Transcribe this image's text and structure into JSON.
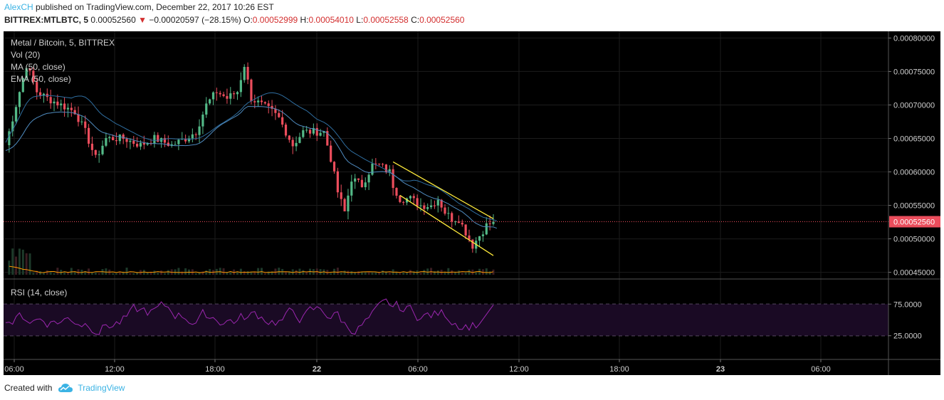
{
  "header": {
    "author": "AlexCH",
    "published_text": "published on TradingView.com, December 22, 2017 10:26 EST",
    "symbol": "BITTREX:MTLBTC, 5",
    "last": "0.00052560",
    "change_arrow": "▼",
    "change": "−0.00020597 (−28.15%)",
    "o_label": "O:",
    "o_value": "0.00052999",
    "h_label": "H:",
    "h_value": "0.00054010",
    "l_label": "L:",
    "l_value": "0.00052558",
    "c_label": "C:",
    "c_value": "0.00052560"
  },
  "legend": {
    "title": "Metal / Bitcoin, 5, BITTREX",
    "vol": "Vol (20)",
    "ma": "MA (50, close)",
    "ema": "EMA (50, close)",
    "rsi": "RSI (14, close)"
  },
  "footer": {
    "created_with": "Created with",
    "brand": "TradingView",
    "logo_icon": "tradingview-cloud-icon"
  },
  "colors": {
    "background": "#000000",
    "up": "#53b987",
    "down": "#eb4d5c",
    "ma": "#2f6ea0",
    "ema": "#4f8bbf",
    "vol_ma": "#ff9800",
    "rsi": "#9c27b0",
    "rsi_band": "#1a0a24",
    "trendline": "#ffeb3b",
    "last_price": "#eb4d5c",
    "grid": "#1c1c1c"
  },
  "chart_data": {
    "type": "candlestick",
    "timeframe_minutes": 5,
    "price_axis": {
      "ticks": [
        "0.00080000",
        "0.00075000",
        "0.00070000",
        "0.00065000",
        "0.00060000",
        "0.00055000",
        "0.00050000",
        "0.00045000"
      ],
      "range": [
        0.00044,
        0.00081
      ]
    },
    "last_price_label": "0.00052560",
    "time_axis": {
      "ticks": [
        "06:00",
        "12:00",
        "18:00",
        "22",
        "06:00",
        "12:00",
        "18:00",
        "23",
        "06:00"
      ]
    },
    "rsi_axis": {
      "ticks": [
        "75.0000",
        "25.0000"
      ],
      "overbought": 70,
      "oversold": 30
    },
    "price_path": [
      [
        0,
        0.00064
      ],
      [
        3,
        0.0007
      ],
      [
        6,
        0.00076
      ],
      [
        9,
        0.00072
      ],
      [
        12,
        0.00071
      ],
      [
        16,
        0.0007
      ],
      [
        20,
        0.00069
      ],
      [
        23,
        0.00066
      ],
      [
        26,
        0.00062
      ],
      [
        29,
        0.00065
      ],
      [
        34,
        0.00065
      ],
      [
        39,
        0.00064
      ],
      [
        43,
        0.00065
      ],
      [
        48,
        0.00064
      ],
      [
        52,
        0.00065
      ],
      [
        55,
        0.00066
      ],
      [
        58,
        0.0007
      ],
      [
        61,
        0.00072
      ],
      [
        64,
        0.00071
      ],
      [
        67,
        0.00072
      ],
      [
        69,
        0.00076
      ],
      [
        71,
        0.00071
      ],
      [
        74,
        0.0007
      ],
      [
        77,
        0.00069
      ],
      [
        79,
        0.00068
      ],
      [
        81,
        0.00066
      ],
      [
        83,
        0.00064
      ],
      [
        86,
        0.00066
      ],
      [
        89,
        0.00066
      ],
      [
        92,
        0.00066
      ],
      [
        94,
        0.00062
      ],
      [
        96,
        0.00057
      ],
      [
        98,
        0.00054
      ],
      [
        100,
        0.00059
      ],
      [
        103,
        0.00058
      ],
      [
        106,
        0.00061
      ],
      [
        108,
        0.00061
      ],
      [
        111,
        0.0006
      ],
      [
        112,
        0.00058
      ],
      [
        114,
        0.00056
      ],
      [
        117,
        0.00056
      ],
      [
        120,
        0.00055
      ],
      [
        123,
        0.00055
      ],
      [
        125,
        0.00056
      ],
      [
        127,
        0.00054
      ],
      [
        129,
        0.00053
      ],
      [
        131,
        0.00053
      ],
      [
        133,
        0.00051
      ],
      [
        135,
        0.00049
      ],
      [
        137,
        0.000505
      ],
      [
        139,
        0.00052
      ],
      [
        141,
        0.0005256
      ]
    ],
    "trend_channel": {
      "upper": [
        [
          112,
          0.000615
        ],
        [
          141,
          0.00053
        ]
      ],
      "lower": [
        [
          114,
          0.000565
        ],
        [
          141,
          0.000475
        ]
      ]
    }
  }
}
